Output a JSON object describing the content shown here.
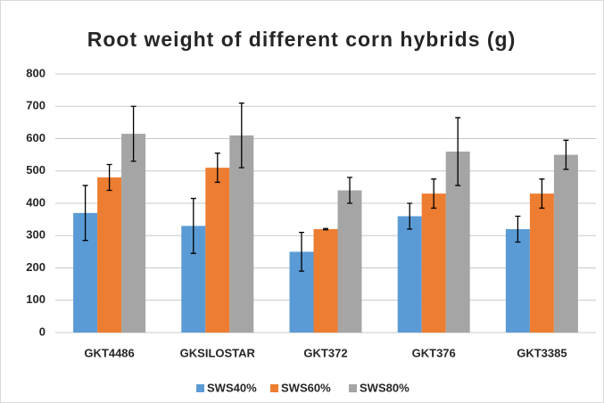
{
  "chart_data": {
    "type": "bar",
    "title": "Root weight of different corn hybrids (g)",
    "categories": [
      "GKT4486",
      "GKSILOSTAR",
      "GKT372",
      "GKT376",
      "GKT3385"
    ],
    "series": [
      {
        "name": "SWS40%",
        "color": "#5b9bd5",
        "values": [
          370,
          330,
          250,
          360,
          320
        ],
        "errors": [
          85,
          85,
          60,
          40,
          40
        ]
      },
      {
        "name": "SWS60%",
        "color": "#ed7d31",
        "values": [
          480,
          510,
          320,
          430,
          430
        ],
        "errors": [
          40,
          45,
          2,
          45,
          45
        ]
      },
      {
        "name": "SWS80%",
        "color": "#a5a5a5",
        "values": [
          615,
          610,
          440,
          560,
          550
        ],
        "errors": [
          85,
          100,
          40,
          105,
          45
        ]
      }
    ],
    "ylim": [
      0,
      800
    ],
    "yticks": [
      0,
      100,
      200,
      300,
      400,
      500,
      600,
      700,
      800
    ],
    "grid": true,
    "legend": "bottom"
  }
}
